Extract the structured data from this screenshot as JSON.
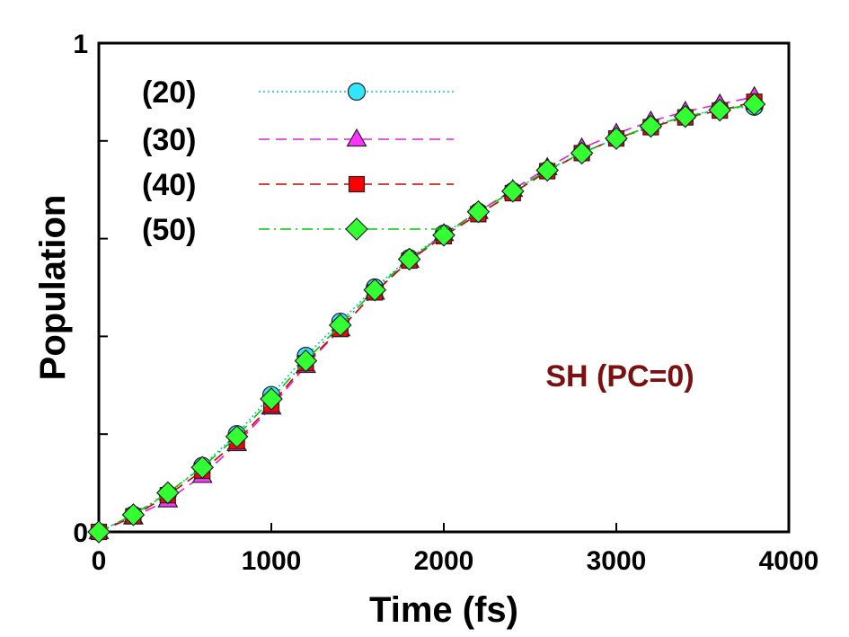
{
  "chart_data": {
    "type": "line",
    "title": "",
    "xlabel": "Time (fs)",
    "ylabel": "Population",
    "xlim": [
      0,
      4000
    ],
    "ylim": [
      0,
      1
    ],
    "xticks": [
      0,
      1000,
      2000,
      3000,
      4000
    ],
    "xtick_labels": [
      "0",
      "1000",
      "2000",
      "3000",
      "4000"
    ],
    "yticks": [
      0,
      0.2,
      0.4,
      0.6,
      0.8,
      1
    ],
    "ytick_labels": [
      "0",
      "",
      "",
      "",
      "",
      "1"
    ],
    "grid": false,
    "legend_placement": "top-left",
    "annotation": "SH (PC=0)",
    "annotation_color": "#7a1010",
    "x": [
      0,
      200,
      400,
      600,
      800,
      1000,
      1200,
      1400,
      1600,
      1800,
      2000,
      2200,
      2400,
      2600,
      2800,
      3000,
      3200,
      3400,
      3600,
      3800
    ],
    "series": [
      {
        "name": "(20)",
        "color": "#00c8c8",
        "marker": "circle",
        "marker_fill": "#33e6ff",
        "line_style": "dotted",
        "values": [
          0.0,
          0.035,
          0.078,
          0.135,
          0.2,
          0.28,
          0.36,
          0.43,
          0.5,
          0.56,
          0.61,
          0.655,
          0.697,
          0.74,
          0.775,
          0.805,
          0.83,
          0.85,
          0.865,
          0.87
        ]
      },
      {
        "name": "(30)",
        "color": "#e020e0",
        "marker": "triangle",
        "marker_fill": "#ff33ff",
        "line_style": "dashed",
        "values": [
          0.0,
          0.03,
          0.065,
          0.115,
          0.18,
          0.255,
          0.34,
          0.415,
          0.49,
          0.555,
          0.61,
          0.655,
          0.7,
          0.745,
          0.785,
          0.815,
          0.84,
          0.86,
          0.875,
          0.89
        ]
      },
      {
        "name": "(40)",
        "color": "#cc0000",
        "marker": "square",
        "marker_fill": "#ff0000",
        "line_style": "dashed",
        "values": [
          0.0,
          0.032,
          0.075,
          0.125,
          0.185,
          0.26,
          0.345,
          0.415,
          0.49,
          0.555,
          0.605,
          0.65,
          0.693,
          0.738,
          0.775,
          0.805,
          0.828,
          0.848,
          0.862,
          0.88
        ]
      },
      {
        "name": "(50)",
        "color": "#00cc00",
        "marker": "diamond",
        "marker_fill": "#33ff33",
        "line_style": "dashdot",
        "values": [
          0.0,
          0.035,
          0.08,
          0.132,
          0.195,
          0.272,
          0.35,
          0.423,
          0.495,
          0.558,
          0.607,
          0.655,
          0.697,
          0.74,
          0.775,
          0.805,
          0.83,
          0.85,
          0.863,
          0.875
        ]
      }
    ]
  }
}
